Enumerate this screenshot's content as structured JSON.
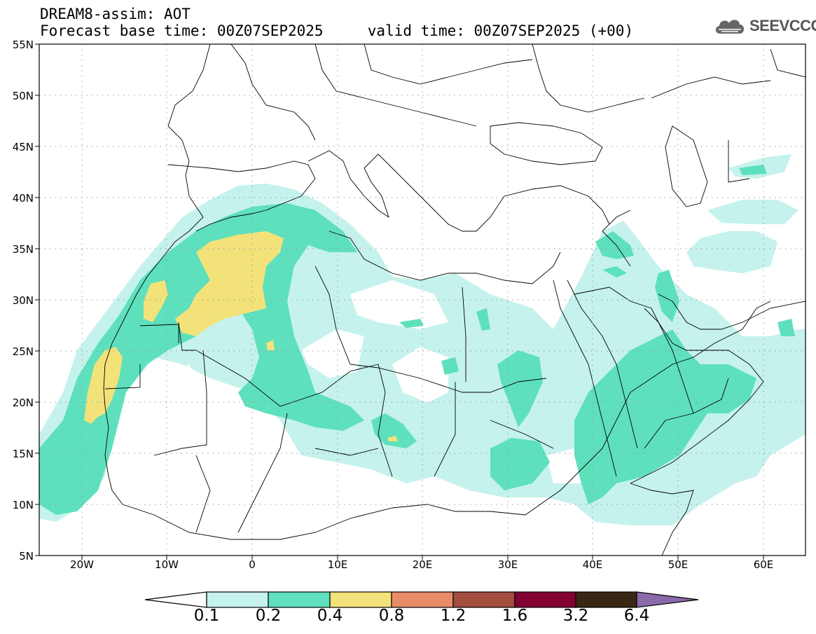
{
  "header": {
    "line1": "DREAM8-assim: AOT",
    "line2": "Forecast base time: 00Z07SEP2025     valid time: 00Z07SEP2025 (+00)"
  },
  "logo": {
    "text": "SEEVCCC",
    "icon": "cloud-icon"
  },
  "axes": {
    "lat_labels": [
      "55N",
      "50N",
      "45N",
      "40N",
      "35N",
      "30N",
      "25N",
      "20N",
      "15N",
      "10N",
      "5N"
    ],
    "lon_labels": [
      "20W",
      "10W",
      "0",
      "10E",
      "20E",
      "30E",
      "40E",
      "50E",
      "60E"
    ],
    "lat_range": [
      5,
      55
    ],
    "lon_range": [
      -25,
      65
    ],
    "grid": "dotted"
  },
  "colorbar": {
    "labels": [
      "0.1",
      "0.2",
      "0.4",
      "0.8",
      "1.2",
      "1.6",
      "3.2",
      "6.4"
    ],
    "colors": [
      "#ffffff",
      "#c5f2ec",
      "#5ee0bc",
      "#f3e27a",
      "#e88c68",
      "#a24d3e",
      "#820032",
      "#3a2614",
      "#8a6aa8"
    ]
  },
  "palette": {
    "aot_0_1": "#c5f2ec",
    "aot_0_2": "#5ee0bc",
    "aot_0_4": "#f3e27a"
  }
}
